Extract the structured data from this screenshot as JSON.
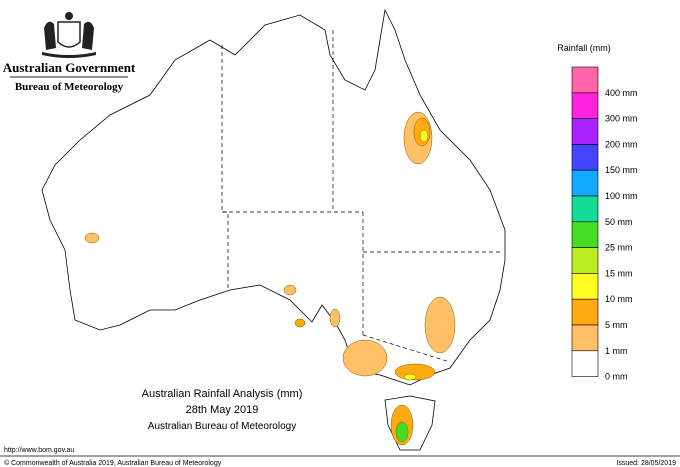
{
  "header": {
    "government": "Australian Government",
    "agency": "Bureau of Meteorology"
  },
  "legend": {
    "title": "Rainfall (mm)",
    "items": [
      {
        "label": "400 mm",
        "color": "#ff66aa"
      },
      {
        "label": "300 mm",
        "color": "#ff22dd"
      },
      {
        "label": "200 mm",
        "color": "#aa22ff"
      },
      {
        "label": "150 mm",
        "color": "#4444ff"
      },
      {
        "label": "100 mm",
        "color": "#11aaff"
      },
      {
        "label": "50 mm",
        "color": "#11dd99"
      },
      {
        "label": "25 mm",
        "color": "#44dd22"
      },
      {
        "label": "15 mm",
        "color": "#bbee22"
      },
      {
        "label": "10 mm",
        "color": "#ffff22"
      },
      {
        "label": "5 mm",
        "color": "#ffaa11"
      },
      {
        "label": "1 mm",
        "color": "#ffc066"
      },
      {
        "label": "0 mm",
        "color": "#ffffff"
      }
    ]
  },
  "title": {
    "line1": "Australian Rainfall Analysis (mm)",
    "line2": "28th May 2019",
    "line3": "Australian Bureau of Meteorology"
  },
  "footer": {
    "url": "http://www.bom.gov.au",
    "copyright": "© Commonwealth of Australia 2019, Australian Bureau of Meteorology",
    "issued": "Issued: 28/05/2019"
  }
}
